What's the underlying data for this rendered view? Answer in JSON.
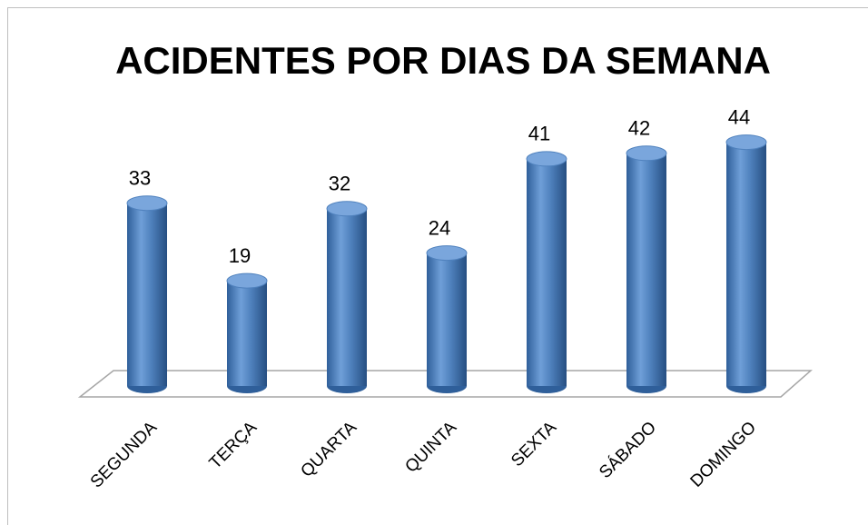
{
  "chart_data": {
    "type": "bar",
    "title": "ACIDENTES POR DIAS DA SEMANA",
    "categories": [
      "SEGUNDA",
      "TERÇA",
      "QUARTA",
      "QUINTA",
      "SEXTA",
      "SÁBADO",
      "DOMINGO"
    ],
    "values": [
      33,
      19,
      32,
      24,
      41,
      42,
      44
    ],
    "color": "#4f81bd"
  }
}
